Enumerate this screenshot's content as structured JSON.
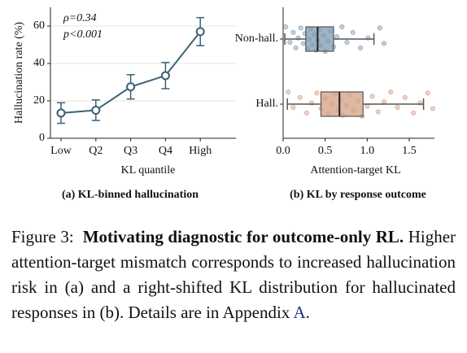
{
  "chart_data": [
    {
      "type": "line",
      "subtitle": "(a) KL-binned hallucination",
      "xlabel": "KL quantile",
      "ylabel": "Hallucination rate (%)",
      "annotations": [
        "ρ=0.34",
        "p<0.001"
      ],
      "categories": [
        "Low",
        "Q2",
        "Q3",
        "Q4",
        "High"
      ],
      "values": [
        13.5,
        15,
        27.5,
        33.5,
        57
      ],
      "errors": [
        5.5,
        5.5,
        6.5,
        7,
        7.5
      ],
      "color": "#3d6175",
      "ylim": [
        0,
        70
      ],
      "yticks": [
        0,
        20,
        40,
        60
      ],
      "grid": true
    },
    {
      "type": "box",
      "subtitle": "(b) KL by response outcome",
      "xlabel": "Attention-target KL",
      "categories": [
        "Non-hall.",
        "Hall."
      ],
      "boxes": [
        {
          "whislo": 0.02,
          "q1": 0.27,
          "median": 0.41,
          "q3": 0.6,
          "whishi": 1.08,
          "color": "#7f9bb3",
          "points": [
            0.03,
            0.08,
            0.12,
            0.15,
            0.18,
            0.21,
            0.24,
            0.26,
            0.29,
            0.31,
            0.33,
            0.35,
            0.37,
            0.39,
            0.41,
            0.43,
            0.45,
            0.48,
            0.5,
            0.53,
            0.56,
            0.6,
            0.64,
            0.7,
            0.76,
            0.83,
            0.92,
            1.01,
            1.15,
            1.2
          ]
        },
        {
          "whislo": 0.05,
          "q1": 0.45,
          "median": 0.67,
          "q3": 0.95,
          "whishi": 1.67,
          "color": "#d4a086",
          "points": [
            0.06,
            0.12,
            0.2,
            0.28,
            0.34,
            0.4,
            0.45,
            0.5,
            0.54,
            0.58,
            0.62,
            0.65,
            0.68,
            0.71,
            0.75,
            0.79,
            0.84,
            0.89,
            0.94,
            1.0,
            1.06,
            1.13,
            1.2,
            1.28,
            1.36,
            1.45,
            1.55,
            1.63,
            1.72,
            1.78
          ]
        }
      ],
      "xlim": [
        0,
        1.8
      ],
      "xticks": [
        {
          "value": 0,
          "label": "0.0"
        },
        0.5,
        {
          "value": 1,
          "label": "1.0"
        },
        1.5
      ]
    }
  ],
  "caption": {
    "label": "Figure 3:",
    "title": "Motivating diagnostic for outcome-only RL.",
    "text": "Higher attention-target mismatch corresponds to increased hallucination risk in (a) and a right-shifted KL distribution for hallucinated responses in (b).  Details are in Appendix",
    "link": "A",
    "end": "."
  }
}
